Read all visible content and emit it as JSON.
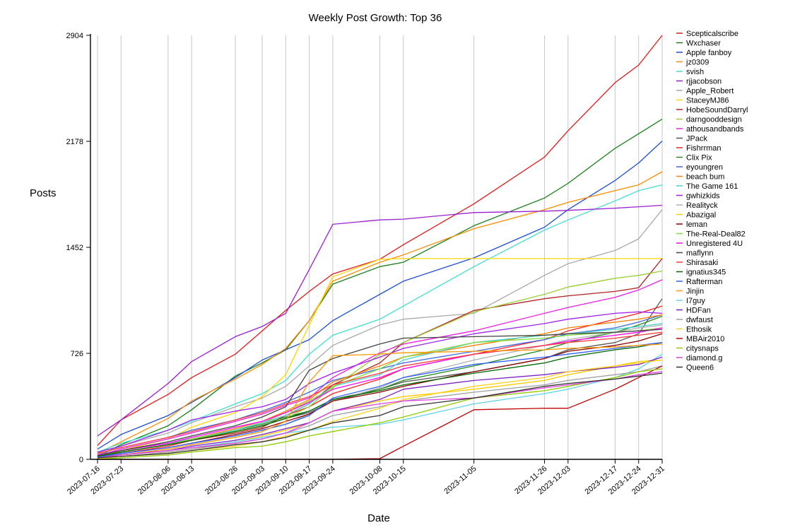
{
  "chart_data": {
    "type": "line",
    "title": "Weekly Post Growth: Top 36",
    "xlabel": "Date",
    "ylabel": "Posts",
    "x": [
      "2023-07-16",
      "2023-07-23",
      "2023-08-06",
      "2023-08-13",
      "2023-08-26",
      "2023-09-03",
      "2023-09-10",
      "2023-09-17",
      "2023-09-24",
      "2023-10-08",
      "2023-10-15",
      "2023-11-05",
      "2023-11-26",
      "2023-12-03",
      "2023-12-17",
      "2023-12-24",
      "2023-12-31"
    ],
    "yticks": [
      0,
      726,
      1452,
      2178,
      2904
    ],
    "ylim": [
      0,
      2904
    ],
    "grid": "vertical",
    "legend_position": "right",
    "series": [
      {
        "name": "Scepticalscribe",
        "color": "#e41a1c",
        "values": [
          95,
          270,
          445,
          560,
          720,
          880,
          1020,
          1150,
          1270,
          1370,
          1470,
          1750,
          2070,
          2250,
          2580,
          2700,
          2904
        ]
      },
      {
        "name": "Wxchaser",
        "color": "#1a7f1a",
        "values": [
          20,
          100,
          230,
          340,
          570,
          660,
          750,
          950,
          1200,
          1320,
          1350,
          1600,
          1790,
          1890,
          2130,
          2230,
          2330
        ]
      },
      {
        "name": "Apple fanboy",
        "color": "#1f4fd8",
        "values": [
          70,
          170,
          300,
          390,
          560,
          680,
          750,
          820,
          950,
          1130,
          1220,
          1380,
          1590,
          1710,
          1910,
          2030,
          2180
        ]
      },
      {
        "name": "jz0309",
        "color": "#ff8c00",
        "values": [
          40,
          120,
          280,
          400,
          550,
          650,
          760,
          950,
          1220,
          1350,
          1400,
          1580,
          1710,
          1760,
          1840,
          1880,
          1970
        ]
      },
      {
        "name": "svish",
        "color": "#40e0d0",
        "values": [
          50,
          110,
          200,
          260,
          380,
          450,
          540,
          720,
          850,
          960,
          1050,
          1320,
          1570,
          1640,
          1770,
          1840,
          1880
        ]
      },
      {
        "name": "rjjacobson",
        "color": "#9b1fd1",
        "values": [
          160,
          270,
          520,
          670,
          840,
          910,
          1000,
          1300,
          1610,
          1640,
          1645,
          1690,
          1700,
          1705,
          1720,
          1730,
          1740
        ]
      },
      {
        "name": "Apple_Robert",
        "color": "#a9a9a9",
        "values": [
          30,
          90,
          180,
          250,
          360,
          420,
          500,
          640,
          780,
          920,
          960,
          1000,
          1260,
          1340,
          1430,
          1510,
          1710
        ]
      },
      {
        "name": "StaceyMJ86",
        "color": "#ffd700",
        "values": [
          10,
          60,
          140,
          220,
          320,
          430,
          580,
          920,
          1250,
          1370,
          1375,
          1375,
          1375,
          1375,
          1375,
          1375,
          1375
        ]
      },
      {
        "name": "HobeSoundDarryl",
        "color": "#b22222",
        "values": [
          20,
          50,
          100,
          130,
          180,
          220,
          300,
          380,
          510,
          660,
          800,
          1020,
          1100,
          1120,
          1150,
          1175,
          1375
        ]
      },
      {
        "name": "darngooddesign",
        "color": "#9acd32",
        "values": [
          30,
          60,
          110,
          140,
          200,
          250,
          320,
          400,
          490,
          720,
          800,
          1010,
          1130,
          1180,
          1240,
          1260,
          1290
        ]
      },
      {
        "name": "athousandbands",
        "color": "#ee1ee6",
        "values": [
          25,
          70,
          140,
          180,
          260,
          310,
          370,
          420,
          560,
          730,
          790,
          880,
          1000,
          1040,
          1110,
          1160,
          1230
        ]
      },
      {
        "name": "JPack",
        "color": "#555555",
        "values": [
          20,
          50,
          100,
          140,
          190,
          230,
          280,
          320,
          400,
          480,
          530,
          600,
          690,
          750,
          800,
          860,
          1100
        ]
      },
      {
        "name": "Fishrrman",
        "color": "#ff2020",
        "values": [
          10,
          40,
          90,
          130,
          200,
          250,
          300,
          360,
          450,
          550,
          620,
          720,
          820,
          880,
          960,
          1000,
          1050
        ]
      },
      {
        "name": "Clix Pix",
        "color": "#228b22",
        "values": [
          30,
          60,
          110,
          140,
          200,
          240,
          290,
          330,
          410,
          480,
          540,
          640,
          750,
          800,
          870,
          920,
          980
        ]
      },
      {
        "name": "eyoungren",
        "color": "#4169e1",
        "values": [
          40,
          80,
          150,
          200,
          270,
          330,
          390,
          460,
          540,
          620,
          660,
          740,
          820,
          860,
          900,
          940,
          990
        ]
      },
      {
        "name": "beach bum",
        "color": "#ff8000",
        "values": [
          20,
          50,
          100,
          140,
          210,
          260,
          330,
          410,
          530,
          640,
          700,
          780,
          860,
          900,
          940,
          960,
          990
        ]
      },
      {
        "name": "The Game 161",
        "color": "#48d1cc",
        "values": [
          30,
          60,
          110,
          140,
          200,
          250,
          300,
          380,
          500,
          580,
          680,
          800,
          850,
          860,
          890,
          910,
          930
        ]
      },
      {
        "name": "gwhizkids",
        "color": "#a020f0",
        "values": [
          50,
          90,
          200,
          270,
          330,
          360,
          410,
          520,
          590,
          700,
          760,
          860,
          930,
          960,
          1000,
          1010,
          1000
        ]
      },
      {
        "name": "Realityck",
        "color": "#b0b0b0",
        "values": [
          10,
          40,
          80,
          110,
          160,
          200,
          240,
          310,
          400,
          490,
          560,
          680,
          780,
          820,
          870,
          900,
          920
        ]
      },
      {
        "name": "Abazigal",
        "color": "#ffcc00",
        "values": [
          5,
          20,
          50,
          70,
          120,
          160,
          200,
          250,
          330,
          400,
          430,
          480,
          540,
          580,
          640,
          670,
          680
        ]
      },
      {
        "name": "leman",
        "color": "#8b0000",
        "values": [
          15,
          40,
          80,
          110,
          170,
          210,
          260,
          310,
          400,
          460,
          500,
          600,
          690,
          740,
          780,
          810,
          860
        ]
      },
      {
        "name": "The-Real-Deal82",
        "color": "#7cdc3c",
        "values": [
          20,
          50,
          100,
          140,
          190,
          230,
          280,
          360,
          500,
          620,
          700,
          800,
          830,
          850,
          870,
          880,
          900
        ]
      },
      {
        "name": "Unregistered 4U",
        "color": "#ff00ff",
        "values": [
          30,
          60,
          110,
          150,
          220,
          260,
          320,
          390,
          480,
          560,
          620,
          720,
          780,
          810,
          850,
          870,
          900
        ]
      },
      {
        "name": "maflynn",
        "color": "#444444",
        "values": [
          25,
          60,
          120,
          160,
          230,
          290,
          360,
          610,
          690,
          790,
          830,
          840,
          850,
          860,
          870,
          880,
          890
        ]
      },
      {
        "name": "Shirasaki",
        "color": "#ff3b3b",
        "values": [
          40,
          80,
          150,
          190,
          270,
          320,
          380,
          430,
          510,
          590,
          640,
          720,
          780,
          800,
          830,
          850,
          870
        ]
      },
      {
        "name": "ignatius345",
        "color": "#006400",
        "values": [
          20,
          50,
          100,
          130,
          190,
          230,
          280,
          330,
          410,
          470,
          510,
          590,
          660,
          700,
          750,
          770,
          800
        ]
      },
      {
        "name": "Rafterman",
        "color": "#3060ff",
        "values": [
          15,
          40,
          80,
          110,
          160,
          200,
          240,
          300,
          420,
          500,
          560,
          650,
          700,
          720,
          760,
          780,
          800
        ]
      },
      {
        "name": "Jinjin",
        "color": "#ff9900",
        "values": [
          10,
          30,
          70,
          100,
          150,
          190,
          260,
          530,
          710,
          720,
          730,
          740,
          750,
          760,
          770,
          780,
          790
        ]
      },
      {
        "name": "I7guy",
        "color": "#5fd3e8",
        "values": [
          10,
          30,
          60,
          80,
          120,
          150,
          180,
          200,
          220,
          240,
          270,
          380,
          450,
          480,
          560,
          620,
          720
        ]
      },
      {
        "name": "HDFan",
        "color": "#7a1fc2",
        "values": [
          10,
          30,
          60,
          90,
          130,
          170,
          210,
          250,
          330,
          410,
          480,
          540,
          580,
          600,
          630,
          650,
          700
        ]
      },
      {
        "name": "dwfaust",
        "color": "#9e9e9e",
        "values": [
          5,
          20,
          50,
          70,
          110,
          140,
          180,
          230,
          300,
          360,
          400,
          460,
          510,
          540,
          580,
          600,
          640
        ]
      },
      {
        "name": "Ethosik",
        "color": "#ffd21a",
        "values": [
          5,
          20,
          40,
          60,
          90,
          120,
          160,
          200,
          260,
          350,
          410,
          500,
          560,
          600,
          640,
          660,
          680
        ]
      },
      {
        "name": "MBAir2010",
        "color": "#c00000",
        "values": [
          0,
          0,
          0,
          0,
          0,
          0,
          0,
          0,
          0,
          5,
          90,
          340,
          350,
          350,
          480,
          560,
          640
        ]
      },
      {
        "name": "citysnaps",
        "color": "#8fce00",
        "values": [
          0,
          10,
          30,
          50,
          80,
          90,
          120,
          160,
          190,
          250,
          290,
          420,
          470,
          500,
          560,
          600,
          620
        ]
      },
      {
        "name": "diamond.g",
        "color": "#e040e0",
        "values": [
          10,
          30,
          60,
          80,
          110,
          140,
          180,
          250,
          330,
          380,
          400,
          420,
          490,
          510,
          550,
          580,
          600
        ]
      },
      {
        "name": "Queen6",
        "color": "#333333",
        "values": [
          10,
          20,
          40,
          60,
          100,
          120,
          150,
          200,
          250,
          300,
          360,
          420,
          500,
          520,
          550,
          570,
          590
        ]
      }
    ]
  }
}
